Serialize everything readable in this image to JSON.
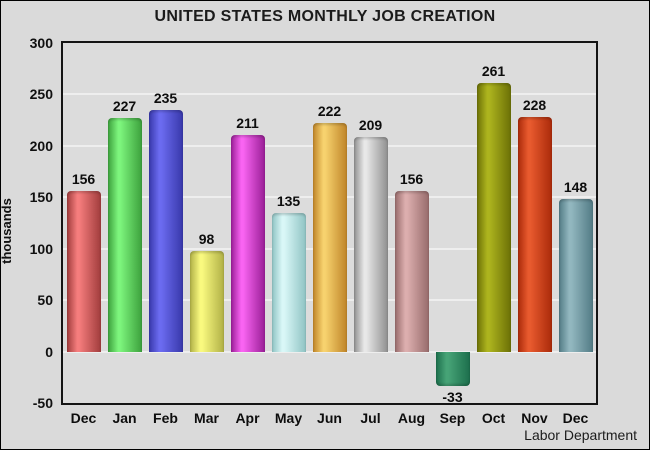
{
  "header": {
    "title": "UNITED STATES MONTHLY JOB CREATION"
  },
  "footer": {
    "source": "Labor Department"
  },
  "chart_data": {
    "type": "bar",
    "title": "UNITED STATES MONTHLY JOB CREATION",
    "xlabel": "",
    "ylabel": "thousands",
    "categories": [
      "Dec",
      "Jan",
      "Feb",
      "Mar",
      "Apr",
      "May",
      "Jun",
      "Jul",
      "Aug",
      "Sep",
      "Oct",
      "Nov",
      "Dec"
    ],
    "values": [
      156,
      227,
      235,
      98,
      211,
      135,
      222,
      209,
      156,
      -33,
      261,
      228,
      148
    ],
    "yticks": [
      300,
      250,
      200,
      150,
      100,
      50,
      0,
      -50
    ],
    "ylim": [
      -50,
      300
    ],
    "grid": true,
    "legend": null,
    "source": "Labor Department",
    "bar_colors": [
      {
        "name": "red",
        "light": "#f57d7d",
        "dark": "#a03c3c"
      },
      {
        "name": "green",
        "light": "#7df57d",
        "dark": "#3ca03c"
      },
      {
        "name": "blue",
        "light": "#6b6bf0",
        "dark": "#3838aa"
      },
      {
        "name": "yellow",
        "light": "#f9f97f",
        "dark": "#b0b046"
      },
      {
        "name": "magenta",
        "light": "#f964f2",
        "dark": "#991e96"
      },
      {
        "name": "pale-cyan",
        "light": "#d9f7f7",
        "dark": "#8fc3c3"
      },
      {
        "name": "gold",
        "light": "#f7d26e",
        "dark": "#bf8428"
      },
      {
        "name": "silver",
        "light": "#e8e8e8",
        "dark": "#8f8f8f"
      },
      {
        "name": "rosy-brown",
        "light": "#dcaeae",
        "dark": "#976b6b"
      },
      {
        "name": "sea-green",
        "light": "#46a376",
        "dark": "#1c6e4c"
      },
      {
        "name": "olive",
        "light": "#adb41e",
        "dark": "#6b7006"
      },
      {
        "name": "orange-red",
        "light": "#e85a2e",
        "dark": "#aa2a0a"
      },
      {
        "name": "slate-teal",
        "light": "#92b7bf",
        "dark": "#527b85"
      }
    ],
    "colors": {
      "page_bg": "#dadada",
      "plot_bg": "#dcdcdc",
      "grid": "#eeeeee",
      "plot_border": "#141414",
      "text": "#0d0d0d"
    }
  }
}
